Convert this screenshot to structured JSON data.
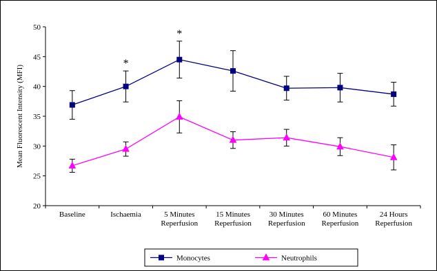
{
  "chart_data": {
    "type": "line",
    "title": "",
    "xlabel": "",
    "ylabel": "Mean Fluorescent Intensity (MFI)",
    "ylim": [
      20,
      50
    ],
    "yticks": [
      20,
      25,
      30,
      35,
      40,
      45,
      50
    ],
    "grid": false,
    "legend_position": "bottom",
    "categories": [
      [
        "Baseline"
      ],
      [
        "Ischaemia"
      ],
      [
        "5 Minutes",
        "Reperfusion"
      ],
      [
        "15 Minutes",
        "Reperfusion"
      ],
      [
        "30 Minutes",
        "Reperfusion"
      ],
      [
        "60 Minutes",
        "Reperfusion"
      ],
      [
        "24 Hours",
        "Reperfusion"
      ]
    ],
    "series": [
      {
        "name": "Monocytes",
        "color": "#000080",
        "marker": "square",
        "values": [
          36.9,
          40.0,
          44.5,
          42.6,
          39.7,
          39.8,
          38.7
        ],
        "error": [
          2.4,
          2.6,
          3.1,
          3.4,
          2.0,
          2.4,
          2.0
        ]
      },
      {
        "name": "Neutrophils",
        "color": "#ff00ff",
        "marker": "triangle",
        "values": [
          26.7,
          29.5,
          34.9,
          31.0,
          31.4,
          29.9,
          28.1
        ],
        "error": [
          1.1,
          1.2,
          2.7,
          1.4,
          1.4,
          1.5,
          2.1
        ]
      }
    ],
    "annotations": [
      {
        "text": "*",
        "category_index": 1
      },
      {
        "text": "*",
        "category_index": 2
      }
    ]
  }
}
